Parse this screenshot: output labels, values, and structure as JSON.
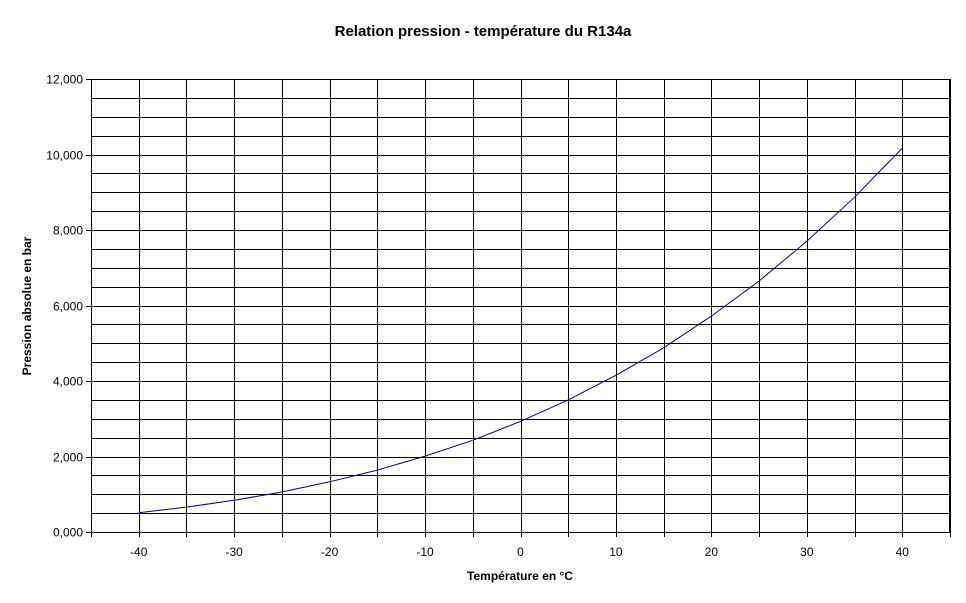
{
  "chart_data": {
    "type": "line",
    "title": "Relation pression - température du R134a",
    "xlabel": "Température en °C",
    "ylabel": "Pression absolue en bar",
    "x": [
      -40,
      -35,
      -30,
      -25,
      -20,
      -15,
      -10,
      -5,
      0,
      5,
      10,
      15,
      20,
      25,
      30,
      35,
      40
    ],
    "x_tick_labels": [
      "-40",
      "-30",
      "-20",
      "-10",
      "0",
      "10",
      "20",
      "30",
      "40"
    ],
    "x_tick_values": [
      -40,
      -30,
      -20,
      -10,
      0,
      10,
      20,
      30,
      40
    ],
    "y_tick_labels": [
      "0,000",
      "2,000",
      "4,000",
      "6,000",
      "8,000",
      "10,000",
      "12,000"
    ],
    "y_tick_values": [
      0,
      2,
      4,
      6,
      8,
      10,
      12
    ],
    "ylim": [
      0,
      12
    ],
    "series": [
      {
        "values": [
          0.51,
          0.66,
          0.84,
          1.06,
          1.33,
          1.64,
          2.01,
          2.43,
          2.93,
          3.5,
          4.15,
          4.88,
          5.72,
          6.65,
          7.7,
          8.87,
          10.17
        ],
        "color": "#000080"
      }
    ],
    "grid": true
  }
}
